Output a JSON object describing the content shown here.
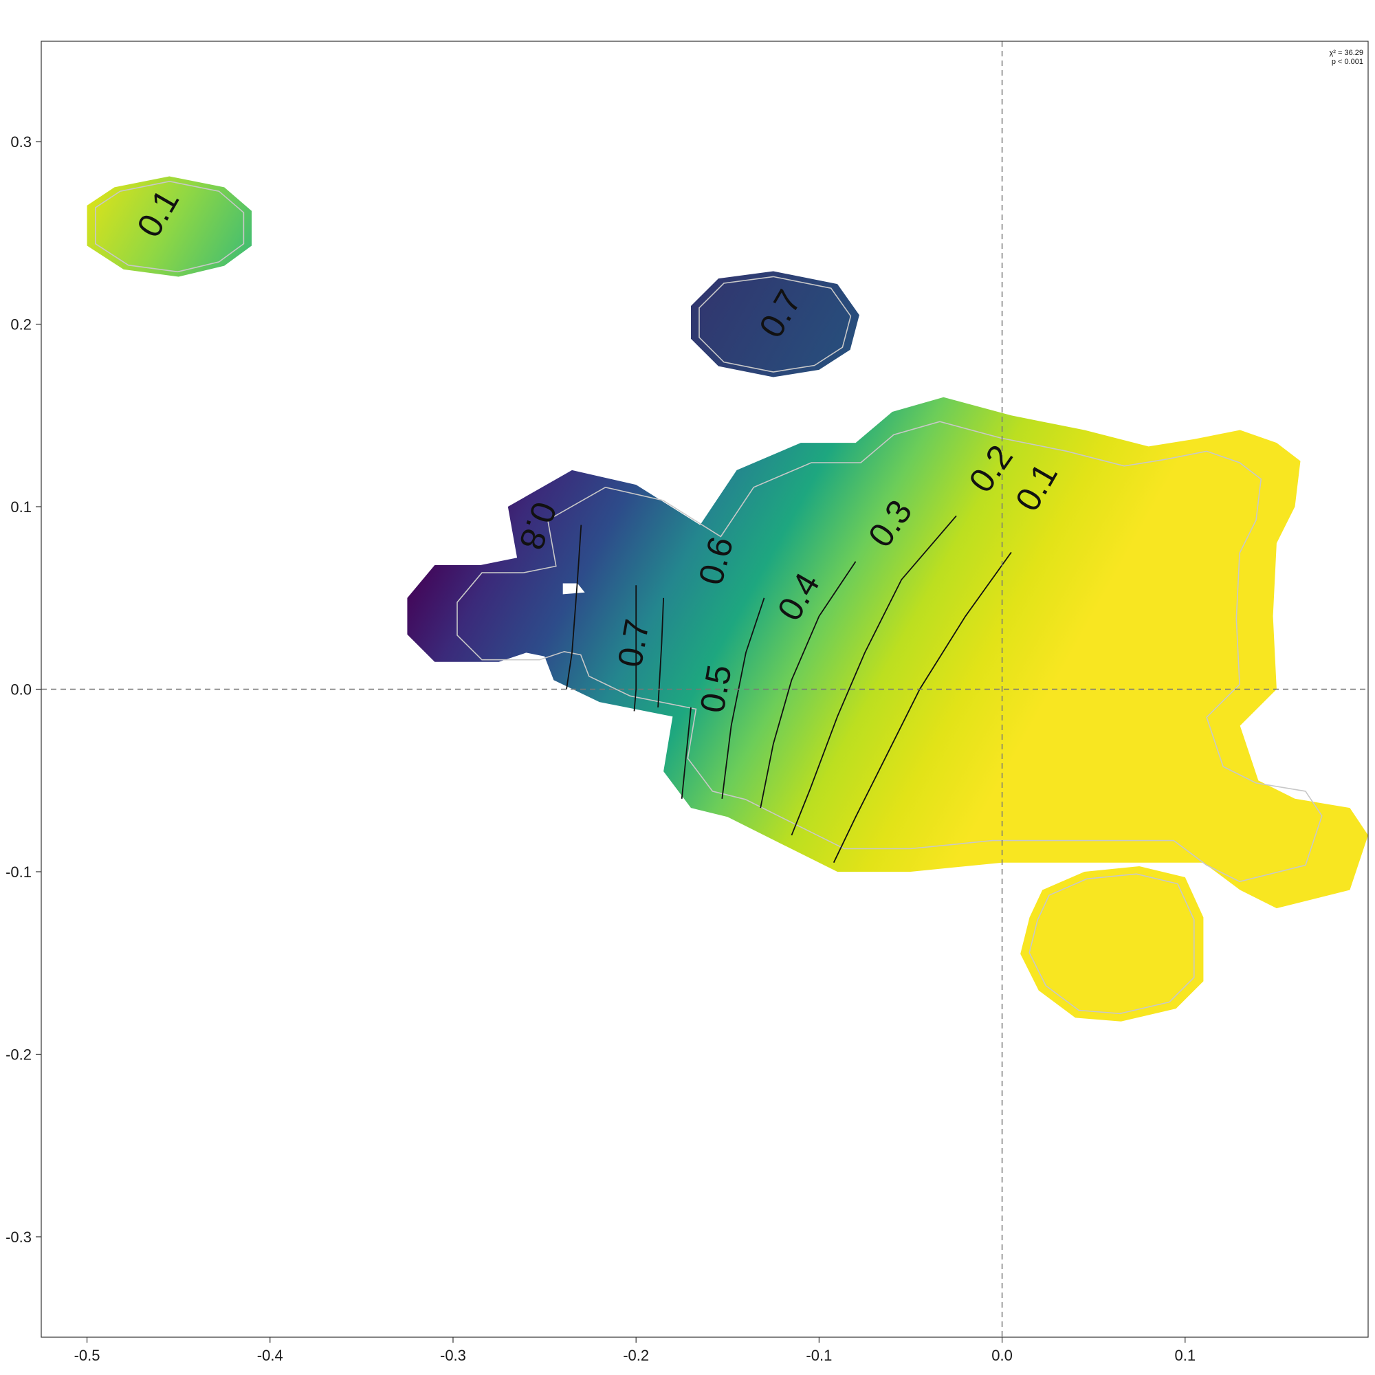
{
  "chart_data": {
    "type": "heatmap",
    "title": "",
    "xlabel": "",
    "ylabel": "",
    "xlim": [
      -0.525,
      0.2
    ],
    "ylim": [
      -0.355,
      0.355
    ],
    "x_ticks": [
      -0.5,
      -0.4,
      -0.3,
      -0.2,
      -0.1,
      0.0,
      0.1
    ],
    "x_tick_labels": [
      "-0.5",
      "-0.4",
      "-0.3",
      "-0.2",
      "-0.1",
      "0.0",
      "0.1"
    ],
    "y_ticks": [
      0.3,
      0.2,
      0.1,
      0.0,
      -0.1,
      -0.2,
      -0.3
    ],
    "y_tick_labels": [
      "0.3",
      "0.2",
      "0.1",
      "0.0",
      "-0.1",
      "-0.2",
      "-0.3"
    ],
    "reference_lines": {
      "x": 0.0,
      "y": 0.0,
      "style": "dashed"
    },
    "colorscale": "viridis",
    "color_range": [
      0.0,
      0.9
    ],
    "regions": [
      {
        "name": "main-region",
        "outline": [
          [
            -0.285,
            0.068
          ],
          [
            -0.265,
            0.072
          ],
          [
            -0.27,
            0.1
          ],
          [
            -0.235,
            0.12
          ],
          [
            -0.2,
            0.112
          ],
          [
            -0.165,
            0.09
          ],
          [
            -0.145,
            0.12
          ],
          [
            -0.11,
            0.135
          ],
          [
            -0.08,
            0.135
          ],
          [
            -0.06,
            0.152
          ],
          [
            -0.032,
            0.16
          ],
          [
            0.005,
            0.15
          ],
          [
            0.045,
            0.142
          ],
          [
            0.08,
            0.133
          ],
          [
            0.105,
            0.137
          ],
          [
            0.13,
            0.142
          ],
          [
            0.15,
            0.135
          ],
          [
            0.163,
            0.125
          ],
          [
            0.16,
            0.1
          ],
          [
            0.15,
            0.08
          ],
          [
            0.148,
            0.04
          ],
          [
            0.15,
            0.0
          ],
          [
            0.13,
            -0.02
          ],
          [
            0.14,
            -0.05
          ],
          [
            0.16,
            -0.06
          ],
          [
            0.19,
            -0.065
          ],
          [
            0.2,
            -0.08
          ],
          [
            0.19,
            -0.11
          ],
          [
            0.15,
            -0.12
          ],
          [
            0.13,
            -0.11
          ],
          [
            0.11,
            -0.095
          ],
          [
            0.065,
            -0.095
          ],
          [
            0.0,
            -0.095
          ],
          [
            -0.05,
            -0.1
          ],
          [
            -0.09,
            -0.1
          ],
          [
            -0.12,
            -0.085
          ],
          [
            -0.15,
            -0.07
          ],
          [
            -0.17,
            -0.065
          ],
          [
            -0.185,
            -0.045
          ],
          [
            -0.18,
            -0.015
          ],
          [
            -0.22,
            -0.007
          ],
          [
            -0.245,
            0.005
          ],
          [
            -0.25,
            0.018
          ],
          [
            -0.26,
            0.02
          ],
          [
            -0.275,
            0.015
          ],
          [
            -0.31,
            0.015
          ],
          [
            -0.325,
            0.03
          ],
          [
            -0.325,
            0.05
          ],
          [
            -0.31,
            0.068
          ]
        ]
      },
      {
        "name": "top-left-blob",
        "outline": [
          [
            -0.5,
            0.265
          ],
          [
            -0.485,
            0.275
          ],
          [
            -0.455,
            0.281
          ],
          [
            -0.425,
            0.275
          ],
          [
            -0.41,
            0.262
          ],
          [
            -0.41,
            0.243
          ],
          [
            -0.425,
            0.232
          ],
          [
            -0.45,
            0.226
          ],
          [
            -0.48,
            0.23
          ],
          [
            -0.5,
            0.243
          ]
        ]
      },
      {
        "name": "upper-middle-blob",
        "outline": [
          [
            -0.17,
            0.21
          ],
          [
            -0.155,
            0.225
          ],
          [
            -0.125,
            0.229
          ],
          [
            -0.09,
            0.222
          ],
          [
            -0.078,
            0.205
          ],
          [
            -0.083,
            0.186
          ],
          [
            -0.1,
            0.175
          ],
          [
            -0.125,
            0.171
          ],
          [
            -0.155,
            0.177
          ],
          [
            -0.17,
            0.192
          ]
        ]
      },
      {
        "name": "lower-right-blob",
        "outline": [
          [
            0.022,
            -0.11
          ],
          [
            0.045,
            -0.1
          ],
          [
            0.075,
            -0.097
          ],
          [
            0.1,
            -0.103
          ],
          [
            0.11,
            -0.125
          ],
          [
            0.11,
            -0.16
          ],
          [
            0.095,
            -0.175
          ],
          [
            0.065,
            -0.182
          ],
          [
            0.04,
            -0.18
          ],
          [
            0.02,
            -0.165
          ],
          [
            0.01,
            -0.145
          ],
          [
            0.015,
            -0.125
          ]
        ]
      }
    ],
    "hole": [
      [
        -0.24,
        0.058
      ],
      [
        -0.232,
        0.058
      ],
      [
        -0.228,
        0.053
      ],
      [
        -0.24,
        0.052
      ]
    ],
    "contours": [
      {
        "level": 0.1,
        "label": "0.1",
        "points": [
          [
            0.005,
            0.075
          ],
          [
            -0.02,
            0.04
          ],
          [
            -0.045,
            0.0
          ],
          [
            -0.065,
            -0.04
          ],
          [
            -0.08,
            -0.07
          ],
          [
            -0.092,
            -0.095
          ]
        ]
      },
      {
        "level": 0.2,
        "label": "0.2",
        "points": [
          [
            -0.025,
            0.095
          ],
          [
            -0.055,
            0.06
          ],
          [
            -0.075,
            0.02
          ],
          [
            -0.09,
            -0.015
          ],
          [
            -0.105,
            -0.055
          ],
          [
            -0.115,
            -0.08
          ]
        ]
      },
      {
        "level": 0.3,
        "label": "0.3",
        "points": [
          [
            -0.08,
            0.07
          ],
          [
            -0.1,
            0.04
          ],
          [
            -0.115,
            0.005
          ],
          [
            -0.125,
            -0.03
          ],
          [
            -0.132,
            -0.065
          ]
        ]
      },
      {
        "level": 0.4,
        "label": "0.4",
        "points": [
          [
            -0.13,
            0.05
          ],
          [
            -0.14,
            0.02
          ],
          [
            -0.148,
            -0.02
          ],
          [
            -0.153,
            -0.06
          ]
        ]
      },
      {
        "level": 0.5,
        "label": "0.5",
        "points": [
          [
            -0.17,
            -0.01
          ],
          [
            -0.172,
            -0.03
          ],
          [
            -0.175,
            -0.06
          ]
        ]
      },
      {
        "level": 0.6,
        "label": "0.6",
        "points": [
          [
            -0.185,
            0.05
          ],
          [
            -0.186,
            0.025
          ],
          [
            -0.188,
            -0.01
          ]
        ]
      },
      {
        "level": 0.7,
        "label": "0.7",
        "points": [
          [
            -0.2,
            0.057
          ],
          [
            -0.2,
            0.035
          ],
          [
            -0.2,
            0.0
          ],
          [
            -0.201,
            -0.012
          ]
        ]
      },
      {
        "level": 0.8,
        "label": "0.8",
        "points": [
          [
            -0.23,
            0.09
          ],
          [
            -0.232,
            0.06
          ],
          [
            -0.235,
            0.02
          ],
          [
            -0.238,
            0.0
          ]
        ]
      }
    ],
    "contour_labels": [
      {
        "label": "0.1",
        "x": 0.02,
        "y": 0.11,
        "angle": -60
      },
      {
        "label": "0.2",
        "x": -0.005,
        "y": 0.12,
        "angle": -55
      },
      {
        "label": "0.3",
        "x": -0.06,
        "y": 0.09,
        "angle": -55
      },
      {
        "label": "0.4",
        "x": -0.11,
        "y": 0.05,
        "angle": -60
      },
      {
        "label": "0.5",
        "x": -0.155,
        "y": 0.0,
        "angle": -80
      },
      {
        "label": "0.6",
        "x": -0.155,
        "y": 0.07,
        "angle": -75
      },
      {
        "label": "0.7",
        "x": -0.2,
        "y": 0.025,
        "angle": -80
      },
      {
        "label": "0.8",
        "x": -0.255,
        "y": 0.09,
        "angle": 110
      },
      {
        "label": "0.1",
        "x": -0.46,
        "y": 0.26,
        "angle": -60
      },
      {
        "label": "0.7",
        "x": -0.12,
        "y": 0.205,
        "angle": -60
      }
    ],
    "stats": {
      "chi2_label": "χ² = 36.29",
      "p_label": "p < 0.001"
    }
  }
}
